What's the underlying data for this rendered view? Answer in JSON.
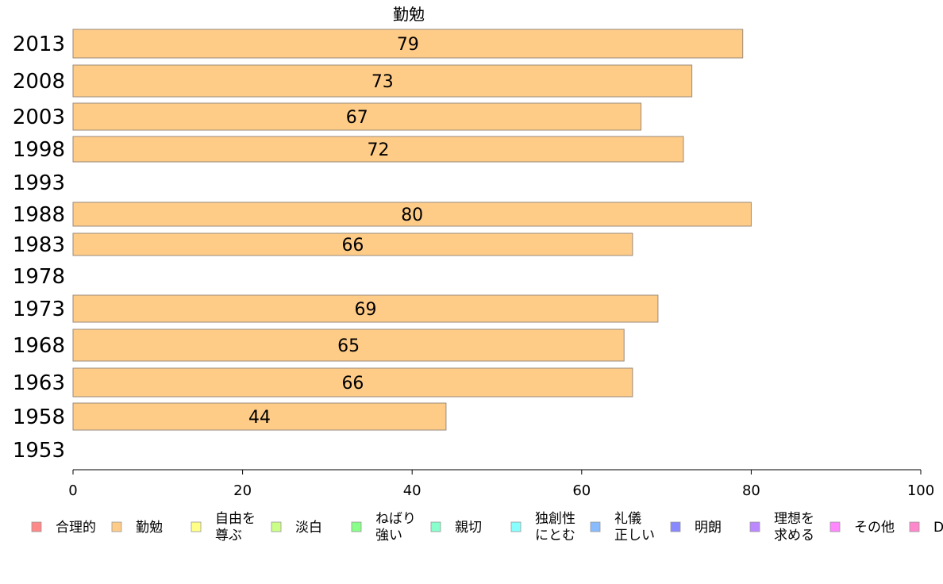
{
  "chart_data": {
    "type": "bar",
    "orientation": "horizontal",
    "title": "勤勉",
    "categories": [
      "2013",
      "2008",
      "2003",
      "1998",
      "1993",
      "1988",
      "1983",
      "1978",
      "1973",
      "1968",
      "1963",
      "1958",
      "1953"
    ],
    "values": [
      79,
      73,
      67,
      72,
      null,
      80,
      66,
      null,
      69,
      65,
      66,
      44,
      null
    ],
    "value_labels": [
      "79",
      "73",
      "67",
      "72",
      "",
      "80",
      "66",
      "",
      "69",
      "65",
      "66",
      "44",
      ""
    ],
    "xlim": [
      0,
      100
    ],
    "xticks": [
      "0",
      "20",
      "40",
      "60",
      "80",
      "100"
    ],
    "xtick_values": [
      0,
      20,
      40,
      60,
      80,
      100
    ],
    "bar_color": "#ffcc88",
    "bar_border": "#9a8a78",
    "grid": false,
    "legend_position": "bottom",
    "legend": [
      {
        "lines": [
          "合理的"
        ],
        "color": "#ff8888"
      },
      {
        "lines": [
          "勤勉"
        ],
        "color": "#ffcc88"
      },
      {
        "lines": [
          "自由を",
          "尊ぶ"
        ],
        "color": "#ffff88"
      },
      {
        "lines": [
          "淡白"
        ],
        "color": "#ccff88"
      },
      {
        "lines": [
          "ねばり",
          "強い"
        ],
        "color": "#88ff88"
      },
      {
        "lines": [
          "親切"
        ],
        "color": "#88ffcc"
      },
      {
        "lines": [
          "独創性",
          "にとむ"
        ],
        "color": "#88ffff"
      },
      {
        "lines": [
          "礼儀",
          "正しい"
        ],
        "color": "#88bbff"
      },
      {
        "lines": [
          "明朗"
        ],
        "color": "#8888ff"
      },
      {
        "lines": [
          "理想を",
          "求める"
        ],
        "color": "#bb88ff"
      },
      {
        "lines": [
          "その他"
        ],
        "color": "#ff88ff"
      },
      {
        "lines": [
          "D"
        ],
        "color": "#ff88cc"
      }
    ]
  }
}
